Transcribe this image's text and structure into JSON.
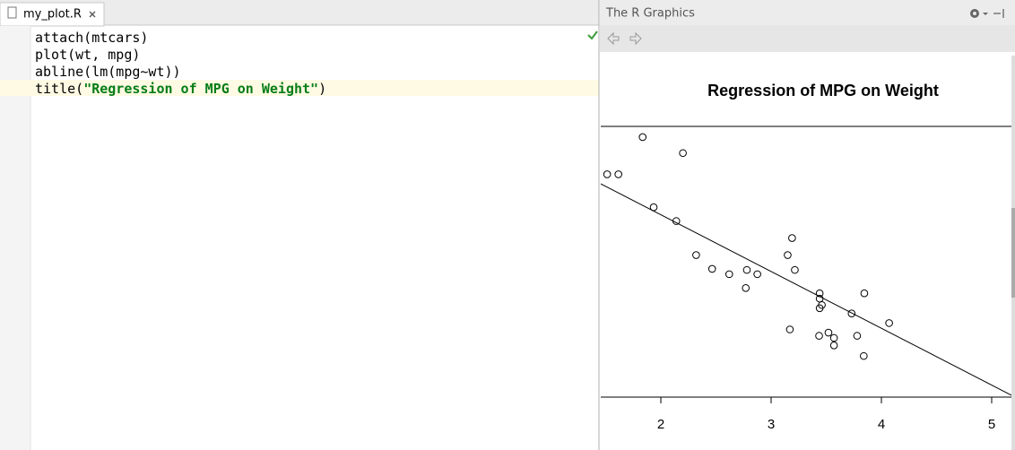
{
  "editor": {
    "tab": "my_plot.R",
    "lines": [
      [
        "attach(mtcars)"
      ],
      [
        "plot(wt, mpg)"
      ],
      [
        "abline(lm(mpg~wt))"
      ],
      [
        "title(",
        "\"Regression of MPG on Weight\"",
        ")"
      ]
    ]
  },
  "graphics": {
    "panel_title": "The R Graphics",
    "chart_data": {
      "type": "scatter",
      "title": "Regression of MPG on Weight",
      "x": [
        2.62,
        2.875,
        2.32,
        3.215,
        3.44,
        3.46,
        3.57,
        3.19,
        3.15,
        3.44,
        3.44,
        4.07,
        3.73,
        3.78,
        2.2,
        1.615,
        1.835,
        2.465,
        3.52,
        3.435,
        3.84,
        3.845,
        1.935,
        2.14,
        1.513,
        3.17,
        2.77,
        3.57,
        2.78
      ],
      "y": [
        21.0,
        21.0,
        22.8,
        21.4,
        18.7,
        18.1,
        14.3,
        24.4,
        22.8,
        19.2,
        17.8,
        16.4,
        17.3,
        15.2,
        32.4,
        30.4,
        33.9,
        21.5,
        15.5,
        15.2,
        13.3,
        19.2,
        27.3,
        26.0,
        30.4,
        15.8,
        19.7,
        15.0,
        21.4
      ],
      "abline": {
        "intercept": 37.285,
        "slope": -5.344
      },
      "xlim": [
        1.455,
        5.179
      ],
      "ylim": [
        9.43,
        34.91
      ],
      "xticks": [
        2,
        3,
        4,
        5
      ]
    }
  }
}
